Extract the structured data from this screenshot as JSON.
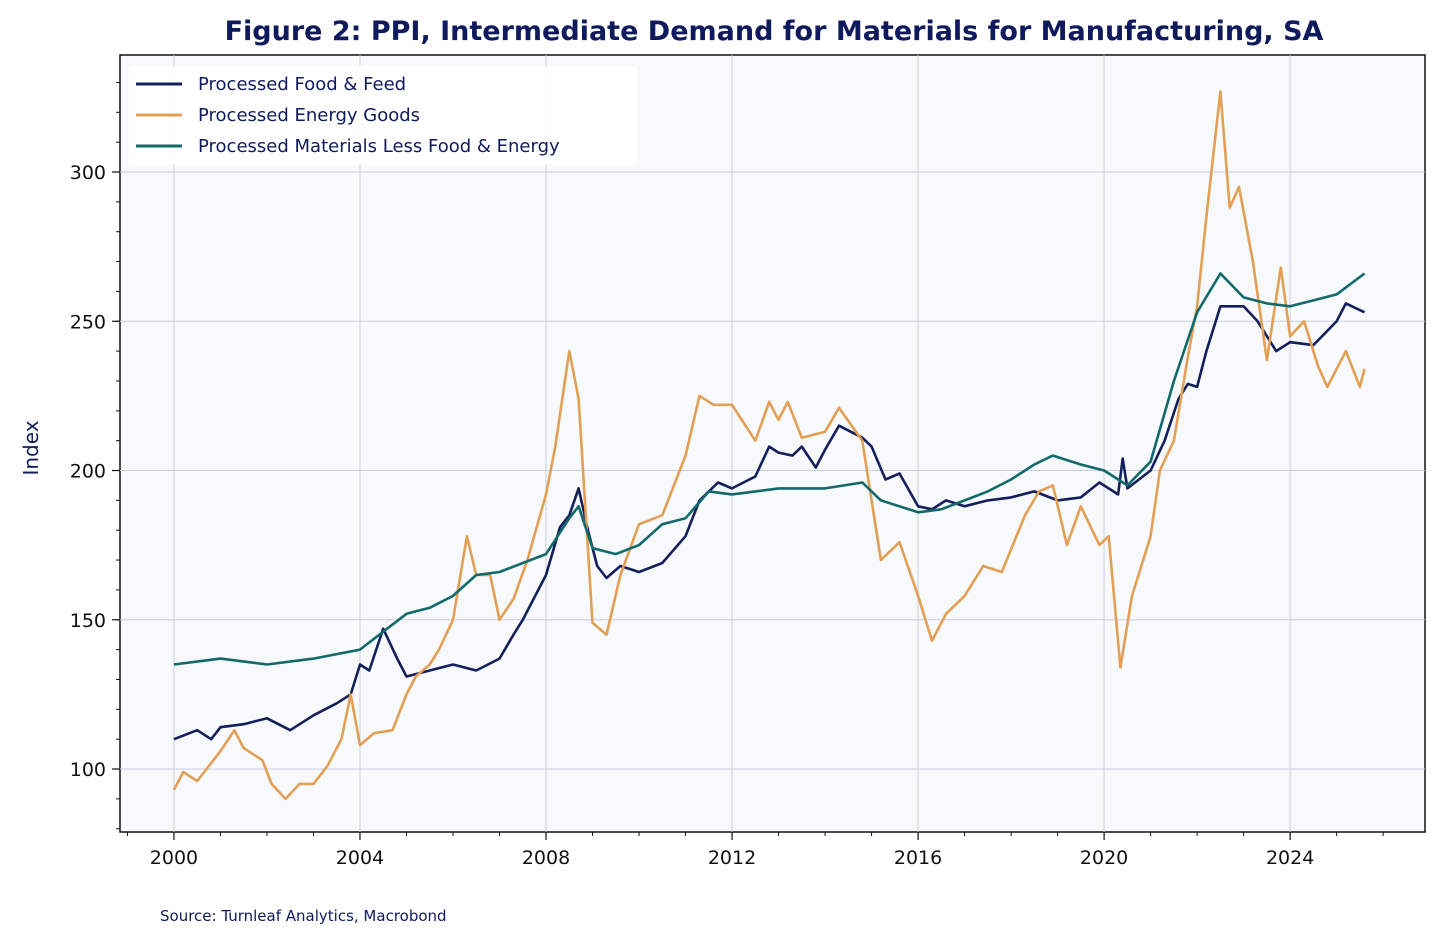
{
  "chart_data": {
    "type": "line",
    "title": "Figure 2: PPI, Intermediate Demand for Materials for Manufacturing, SA",
    "xlabel": "",
    "ylabel": "Index",
    "source": "Source: Turnleaf Analytics, Macrobond",
    "xlim": [
      1998.84,
      2026.9
    ],
    "ylim": [
      78.9,
      339.2
    ],
    "xticks": [
      2000,
      2004,
      2008,
      2012,
      2016,
      2020,
      2024
    ],
    "xtick_labels": [
      "2000",
      "2004",
      "2008",
      "2012",
      "2016",
      "2020",
      "2024"
    ],
    "yticks": [
      100,
      150,
      200,
      250,
      300
    ],
    "ytick_labels": [
      "100",
      "150",
      "200",
      "250",
      "300"
    ],
    "grid": true,
    "legend_position": "top-left",
    "series": [
      {
        "name": "Processed Food & Feed",
        "color": "#141f5c",
        "points": [
          [
            2000,
            110
          ],
          [
            2000.5,
            113
          ],
          [
            2000.8,
            110
          ],
          [
            2001,
            114
          ],
          [
            2001.5,
            115
          ],
          [
            2002,
            117
          ],
          [
            2002.5,
            113
          ],
          [
            2003,
            118
          ],
          [
            2003.5,
            122
          ],
          [
            2003.8,
            125
          ],
          [
            2004,
            135
          ],
          [
            2004.2,
            133
          ],
          [
            2004.5,
            147
          ],
          [
            2004.8,
            137
          ],
          [
            2005,
            131
          ],
          [
            2005.5,
            133
          ],
          [
            2006,
            135
          ],
          [
            2006.5,
            133
          ],
          [
            2007,
            137
          ],
          [
            2007.3,
            145
          ],
          [
            2007.5,
            150
          ],
          [
            2008,
            165
          ],
          [
            2008.3,
            181
          ],
          [
            2008.5,
            185
          ],
          [
            2008.7,
            194
          ],
          [
            2008.9,
            180
          ],
          [
            2009.1,
            168
          ],
          [
            2009.3,
            164
          ],
          [
            2009.6,
            168
          ],
          [
            2010,
            166
          ],
          [
            2010.5,
            169
          ],
          [
            2011,
            178
          ],
          [
            2011.3,
            190
          ],
          [
            2011.7,
            196
          ],
          [
            2012,
            194
          ],
          [
            2012.5,
            198
          ],
          [
            2012.8,
            208
          ],
          [
            2013,
            206
          ],
          [
            2013.3,
            205
          ],
          [
            2013.5,
            208
          ],
          [
            2013.8,
            201
          ],
          [
            2014,
            207
          ],
          [
            2014.3,
            215
          ],
          [
            2014.8,
            211
          ],
          [
            2015,
            208
          ],
          [
            2015.3,
            197
          ],
          [
            2015.6,
            199
          ],
          [
            2016,
            188
          ],
          [
            2016.3,
            187
          ],
          [
            2016.6,
            190
          ],
          [
            2017,
            188
          ],
          [
            2017.5,
            190
          ],
          [
            2018,
            191
          ],
          [
            2018.5,
            193
          ],
          [
            2019,
            190
          ],
          [
            2019.5,
            191
          ],
          [
            2019.9,
            196
          ],
          [
            2020.3,
            192
          ],
          [
            2020.4,
            204
          ],
          [
            2020.5,
            194
          ],
          [
            2021,
            200
          ],
          [
            2021.3,
            210
          ],
          [
            2021.6,
            224
          ],
          [
            2021.8,
            229
          ],
          [
            2022,
            228
          ],
          [
            2022.2,
            240
          ],
          [
            2022.5,
            255
          ],
          [
            2023,
            255
          ],
          [
            2023.3,
            250
          ],
          [
            2023.7,
            240
          ],
          [
            2024,
            243
          ],
          [
            2024.5,
            242
          ],
          [
            2025,
            250
          ],
          [
            2025.2,
            256
          ],
          [
            2025.6,
            253
          ]
        ]
      },
      {
        "name": "Processed Energy Goods",
        "color": "#e39f55",
        "points": [
          [
            2000,
            93
          ],
          [
            2000.2,
            99
          ],
          [
            2000.5,
            96
          ],
          [
            2000.8,
            102
          ],
          [
            2001,
            106
          ],
          [
            2001.3,
            113
          ],
          [
            2001.5,
            107
          ],
          [
            2001.9,
            103
          ],
          [
            2002.1,
            95
          ],
          [
            2002.4,
            90
          ],
          [
            2002.7,
            95
          ],
          [
            2003,
            95
          ],
          [
            2003.3,
            101
          ],
          [
            2003.6,
            110
          ],
          [
            2003.8,
            125
          ],
          [
            2004,
            108
          ],
          [
            2004.3,
            112
          ],
          [
            2004.7,
            113
          ],
          [
            2005,
            125
          ],
          [
            2005.2,
            131
          ],
          [
            2005.5,
            135
          ],
          [
            2005.7,
            140
          ],
          [
            2006,
            150
          ],
          [
            2006.3,
            178
          ],
          [
            2006.5,
            165
          ],
          [
            2006.8,
            165
          ],
          [
            2007,
            150
          ],
          [
            2007.3,
            157
          ],
          [
            2007.6,
            170
          ],
          [
            2008,
            192
          ],
          [
            2008.2,
            208
          ],
          [
            2008.5,
            240
          ],
          [
            2008.7,
            224
          ],
          [
            2009,
            149
          ],
          [
            2009.3,
            145
          ],
          [
            2009.6,
            165
          ],
          [
            2010,
            182
          ],
          [
            2010.5,
            185
          ],
          [
            2011,
            205
          ],
          [
            2011.3,
            225
          ],
          [
            2011.6,
            222
          ],
          [
            2012,
            222
          ],
          [
            2012.5,
            210
          ],
          [
            2012.8,
            223
          ],
          [
            2013,
            217
          ],
          [
            2013.2,
            223
          ],
          [
            2013.5,
            211
          ],
          [
            2014,
            213
          ],
          [
            2014.3,
            221
          ],
          [
            2014.8,
            210
          ],
          [
            2015,
            190
          ],
          [
            2015.2,
            170
          ],
          [
            2015.6,
            176
          ],
          [
            2016,
            158
          ],
          [
            2016.3,
            143
          ],
          [
            2016.6,
            152
          ],
          [
            2017,
            158
          ],
          [
            2017.4,
            168
          ],
          [
            2017.8,
            166
          ],
          [
            2018.3,
            185
          ],
          [
            2018.6,
            193
          ],
          [
            2018.9,
            195
          ],
          [
            2019.2,
            175
          ],
          [
            2019.5,
            188
          ],
          [
            2019.9,
            175
          ],
          [
            2020.1,
            178
          ],
          [
            2020.35,
            134
          ],
          [
            2020.6,
            158
          ],
          [
            2021,
            178
          ],
          [
            2021.2,
            200
          ],
          [
            2021.5,
            210
          ],
          [
            2021.8,
            238
          ],
          [
            2022,
            255
          ],
          [
            2022.2,
            285
          ],
          [
            2022.5,
            327
          ],
          [
            2022.7,
            288
          ],
          [
            2022.9,
            295
          ],
          [
            2023.2,
            270
          ],
          [
            2023.5,
            237
          ],
          [
            2023.8,
            268
          ],
          [
            2024,
            245
          ],
          [
            2024.3,
            250
          ],
          [
            2024.6,
            235
          ],
          [
            2024.8,
            228
          ],
          [
            2025.2,
            240
          ],
          [
            2025.5,
            228
          ],
          [
            2025.6,
            234
          ]
        ]
      },
      {
        "name": "Processed Materials Less Food & Energy",
        "color": "#12696b",
        "points": [
          [
            2000,
            135
          ],
          [
            2001,
            137
          ],
          [
            2002,
            135
          ],
          [
            2003,
            137
          ],
          [
            2004,
            140
          ],
          [
            2004.5,
            146
          ],
          [
            2005,
            152
          ],
          [
            2005.5,
            154
          ],
          [
            2006,
            158
          ],
          [
            2006.5,
            165
          ],
          [
            2007,
            166
          ],
          [
            2007.5,
            169
          ],
          [
            2008,
            172
          ],
          [
            2008.5,
            184
          ],
          [
            2008.7,
            188
          ],
          [
            2009,
            174
          ],
          [
            2009.5,
            172
          ],
          [
            2010,
            175
          ],
          [
            2010.5,
            182
          ],
          [
            2011,
            184
          ],
          [
            2011.5,
            193
          ],
          [
            2012,
            192
          ],
          [
            2012.5,
            193
          ],
          [
            2013,
            194
          ],
          [
            2014,
            194
          ],
          [
            2014.8,
            196
          ],
          [
            2015.2,
            190
          ],
          [
            2016,
            186
          ],
          [
            2016.5,
            187
          ],
          [
            2017,
            190
          ],
          [
            2017.5,
            193
          ],
          [
            2018,
            197
          ],
          [
            2018.5,
            202
          ],
          [
            2018.9,
            205
          ],
          [
            2019.5,
            202
          ],
          [
            2020,
            200
          ],
          [
            2020.5,
            195
          ],
          [
            2021,
            203
          ],
          [
            2021.5,
            230
          ],
          [
            2022,
            253
          ],
          [
            2022.5,
            266
          ],
          [
            2023,
            258
          ],
          [
            2023.5,
            256
          ],
          [
            2024,
            255
          ],
          [
            2024.5,
            257
          ],
          [
            2025,
            259
          ],
          [
            2025.6,
            266
          ]
        ]
      }
    ]
  }
}
